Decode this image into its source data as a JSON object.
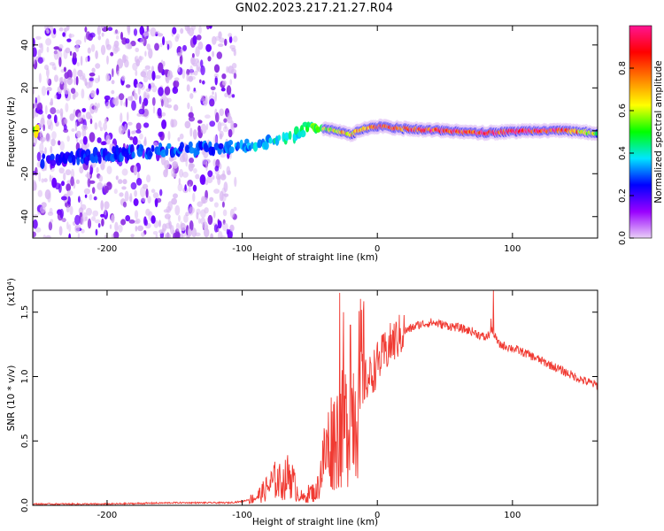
{
  "figure_title": "GN02.2023.217.21.27.R04",
  "chart_data": [
    {
      "type": "heatmap",
      "title": "GN02.2023.217.21.27.R04",
      "xlabel": "Height of straight line (km)",
      "ylabel": "Frequency (Hz)",
      "xlim": [
        -255,
        163
      ],
      "ylim": [
        -50,
        49
      ],
      "xticks": [
        -200,
        -100,
        0,
        100
      ],
      "xtick_labels": [
        "-200",
        "-100",
        "0",
        "100"
      ],
      "yticks": [
        -40,
        -20,
        0,
        20,
        40
      ],
      "ytick_labels": [
        "-40",
        "-20",
        "0",
        "20",
        "40"
      ],
      "colorbar": {
        "label": "Normalized spectral amplitude",
        "range": [
          0,
          1
        ],
        "ticks": [
          0.0,
          0.2,
          0.4,
          0.6,
          0.8
        ],
        "tick_labels": [
          "0.0",
          "0.2",
          "0.4",
          "0.6",
          "0.8"
        ],
        "colormap": [
          "#e9d0f7",
          "#9900ff",
          "#0000ff",
          "#00e5ff",
          "#00ff00",
          "#ffff00",
          "#ff8000",
          "#ff0000",
          "#ff1493"
        ]
      },
      "signal_track": {
        "description_points_x": [
          -250,
          -200,
          -160,
          -120,
          -100,
          -80,
          -60,
          -50,
          -40,
          -30,
          -20,
          -10,
          0,
          20,
          50,
          80,
          110,
          140,
          163
        ],
        "frequency_hz": [
          -14,
          -11,
          -9,
          -8,
          -7,
          -5,
          -2,
          3,
          1,
          0,
          -2,
          1,
          2,
          1,
          0,
          -1,
          0,
          0,
          -1
        ],
        "amplitude": [
          0.25,
          0.28,
          0.3,
          0.3,
          0.35,
          0.4,
          0.45,
          0.5,
          0.6,
          0.7,
          0.75,
          0.8,
          0.85,
          0.9,
          0.95,
          0.9,
          0.95,
          0.9,
          0.6
        ]
      }
    },
    {
      "type": "line",
      "xlabel": "Height of straight line (km)",
      "ylabel": "SNR (10 * v/v)",
      "y_multiplier_label": "(x10⁴)",
      "xlim": [
        -255,
        163
      ],
      "ylim": [
        0,
        1.67
      ],
      "xticks": [
        -200,
        -100,
        0,
        100
      ],
      "xtick_labels": [
        "-200",
        "-100",
        "0",
        "100"
      ],
      "yticks": [
        0.0,
        0.5,
        1.0,
        1.5
      ],
      "ytick_labels": [
        "0.0",
        "0.5",
        "1.0",
        "1.5"
      ],
      "color": "#f03a32",
      "series": [
        {
          "name": "SNR",
          "x": [
            -255,
            -200,
            -150,
            -110,
            -100,
            -90,
            -85,
            -80,
            -75,
            -70,
            -65,
            -60,
            -55,
            -50,
            -45,
            -40,
            -35,
            -30,
            -25,
            -20,
            -15,
            -10,
            -5,
            0,
            10,
            20,
            30,
            40,
            50,
            60,
            70,
            80,
            85,
            90,
            100,
            110,
            120,
            130,
            140,
            150,
            163
          ],
          "values": [
            0.01,
            0.01,
            0.02,
            0.02,
            0.03,
            0.06,
            0.1,
            0.15,
            0.2,
            0.17,
            0.25,
            0.12,
            0.05,
            0.1,
            0.1,
            0.35,
            0.5,
            0.55,
            0.6,
            0.7,
            0.85,
            0.95,
            1.0,
            1.1,
            1.25,
            1.35,
            1.4,
            1.42,
            1.4,
            1.38,
            1.35,
            1.3,
            1.35,
            1.25,
            1.22,
            1.18,
            1.13,
            1.08,
            1.03,
            0.98,
            0.93
          ]
        }
      ],
      "spikes": [
        {
          "x": -28,
          "value": 1.65
        },
        {
          "x": -25,
          "value": 1.5
        },
        {
          "x": -20,
          "value": 1.4
        },
        {
          "x": 86,
          "value": 1.67
        },
        {
          "x": 84,
          "value": 1.45
        }
      ]
    }
  ]
}
